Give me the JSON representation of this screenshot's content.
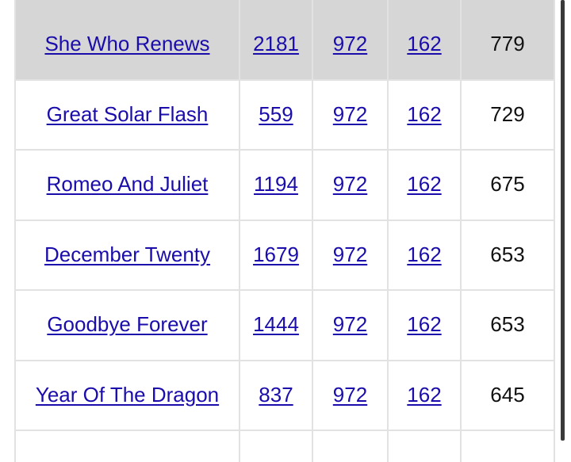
{
  "table": {
    "rows": [
      [
        "She Who Renews",
        "2181",
        "972",
        "162",
        "779"
      ],
      [
        "Great Solar Flash",
        "559",
        "972",
        "162",
        "729"
      ],
      [
        "Romeo And Juliet",
        "1194",
        "972",
        "162",
        "675"
      ],
      [
        "December Twenty",
        "1679",
        "972",
        "162",
        "653"
      ],
      [
        "Goodbye Forever",
        "1444",
        "972",
        "162",
        "653"
      ],
      [
        "Year Of The Dragon",
        "837",
        "972",
        "162",
        "645"
      ]
    ]
  }
}
